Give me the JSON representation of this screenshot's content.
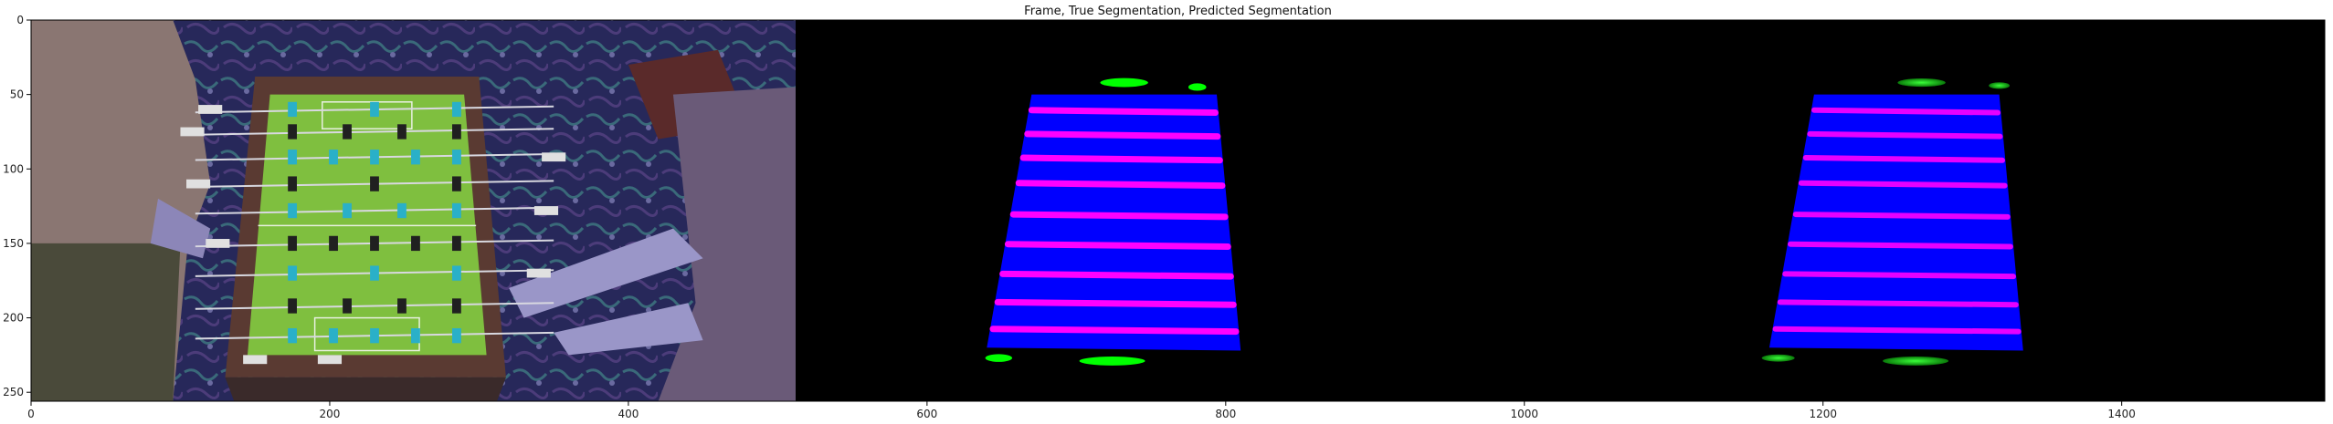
{
  "chart_data": {
    "type": "image",
    "title": "Frame, True Segmentation, Predicted Segmentation",
    "xlabel": "",
    "ylabel": "",
    "xlim": [
      0,
      1536
    ],
    "ylim": [
      256,
      0
    ],
    "xticks": [
      0,
      200,
      400,
      600,
      800,
      1000,
      1200,
      1400
    ],
    "yticks": [
      0,
      50,
      100,
      150,
      200,
      250
    ],
    "panels": [
      {
        "name": "Frame",
        "x_range": [
          0,
          512
        ]
      },
      {
        "name": "True Segmentation",
        "x_range": [
          512,
          1024
        ]
      },
      {
        "name": "Predicted Segmentation",
        "x_range": [
          1024,
          1536
        ]
      }
    ],
    "colors": {
      "background": "#000000",
      "table": "#0000ff",
      "rods": "#ff00ff",
      "goal_markers": "#00ff00",
      "frame_field": "#7fbf3f",
      "frame_table_wood": "#5a3a32",
      "frame_carpet": "#2a2a55"
    },
    "grid": false
  }
}
